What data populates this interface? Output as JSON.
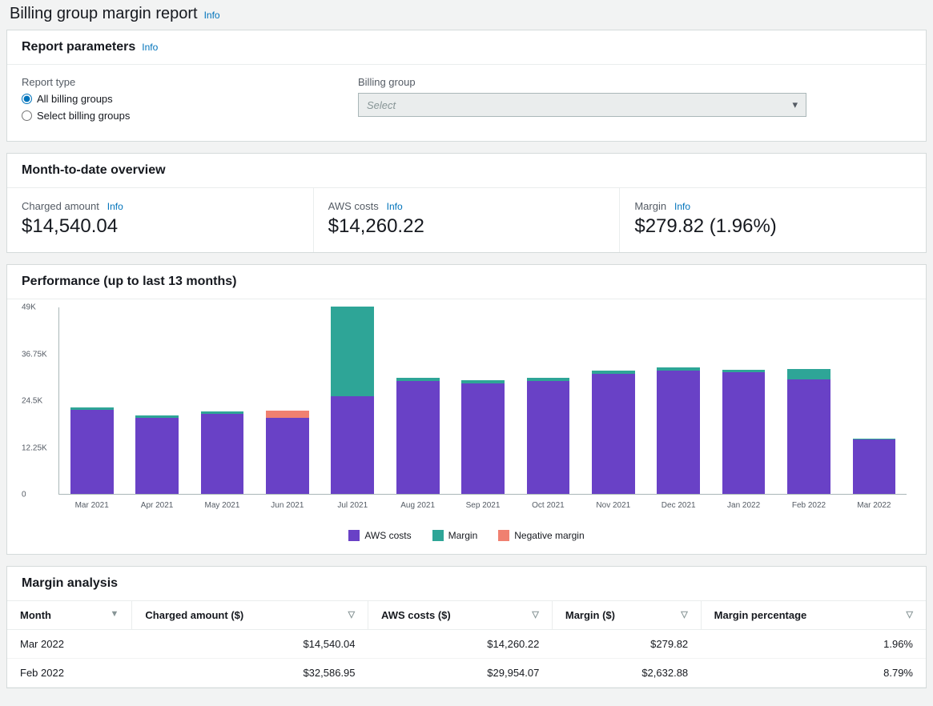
{
  "page": {
    "title": "Billing group margin report",
    "info": "Info"
  },
  "params": {
    "title": "Report parameters",
    "info": "Info",
    "report_type_label": "Report type",
    "radio_all": "All billing groups",
    "radio_select": "Select billing groups",
    "billing_group_label": "Billing group",
    "select_placeholder": "Select"
  },
  "overview": {
    "title": "Month-to-date overview",
    "charged": {
      "label": "Charged amount",
      "info": "Info",
      "value": "$14,540.04"
    },
    "aws": {
      "label": "AWS costs",
      "info": "Info",
      "value": "$14,260.22"
    },
    "margin": {
      "label": "Margin",
      "info": "Info",
      "value": "$279.82 (1.96%)"
    }
  },
  "chart": {
    "title": "Performance (up to last 13 months)",
    "type": "stacked-bar",
    "ymax": 49000,
    "ytick_labels": [
      "0",
      "12.25K",
      "24.5K",
      "36.75K",
      "49K"
    ],
    "ytick_values": [
      0,
      12250,
      24500,
      36750,
      49000
    ],
    "colors": {
      "aws": "#6941c6",
      "margin": "#2ea597",
      "negative": "#f08070",
      "axis": "#aab7b8",
      "tick_text": "#545b64",
      "background": "#ffffff"
    },
    "legend": {
      "aws": "AWS costs",
      "margin": "Margin",
      "negative": "Negative margin"
    },
    "months": [
      {
        "label": "Mar 2021",
        "aws": 22000,
        "margin": 600,
        "negative": 0
      },
      {
        "label": "Apr 2021",
        "aws": 20000,
        "margin": 600,
        "negative": 0
      },
      {
        "label": "May 2021",
        "aws": 21000,
        "margin": 600,
        "negative": 0
      },
      {
        "label": "Jun 2021",
        "aws": 20000,
        "margin": 0,
        "negative": 1800
      },
      {
        "label": "Jul 2021",
        "aws": 25500,
        "margin": 23500,
        "negative": 0
      },
      {
        "label": "Aug 2021",
        "aws": 29500,
        "margin": 800,
        "negative": 0
      },
      {
        "label": "Sep 2021",
        "aws": 29000,
        "margin": 800,
        "negative": 0
      },
      {
        "label": "Oct 2021",
        "aws": 29500,
        "margin": 800,
        "negative": 0
      },
      {
        "label": "Nov 2021",
        "aws": 31500,
        "margin": 800,
        "negative": 0
      },
      {
        "label": "Dec 2021",
        "aws": 32200,
        "margin": 800,
        "negative": 0
      },
      {
        "label": "Jan 2022",
        "aws": 31800,
        "margin": 600,
        "negative": 0
      },
      {
        "label": "Feb 2022",
        "aws": 29954,
        "margin": 2633,
        "negative": 0
      },
      {
        "label": "Mar 2022",
        "aws": 14260,
        "margin": 280,
        "negative": 0
      }
    ]
  },
  "analysis": {
    "title": "Margin analysis",
    "columns": {
      "month": "Month",
      "charged": "Charged amount ($)",
      "aws": "AWS costs ($)",
      "margin": "Margin ($)",
      "pct": "Margin percentage"
    },
    "rows": [
      {
        "month": "Mar 2022",
        "charged": "$14,540.04",
        "aws": "$14,260.22",
        "margin": "$279.82",
        "pct": "1.96%"
      },
      {
        "month": "Feb 2022",
        "charged": "$32,586.95",
        "aws": "$29,954.07",
        "margin": "$2,632.88",
        "pct": "8.79%"
      }
    ]
  }
}
